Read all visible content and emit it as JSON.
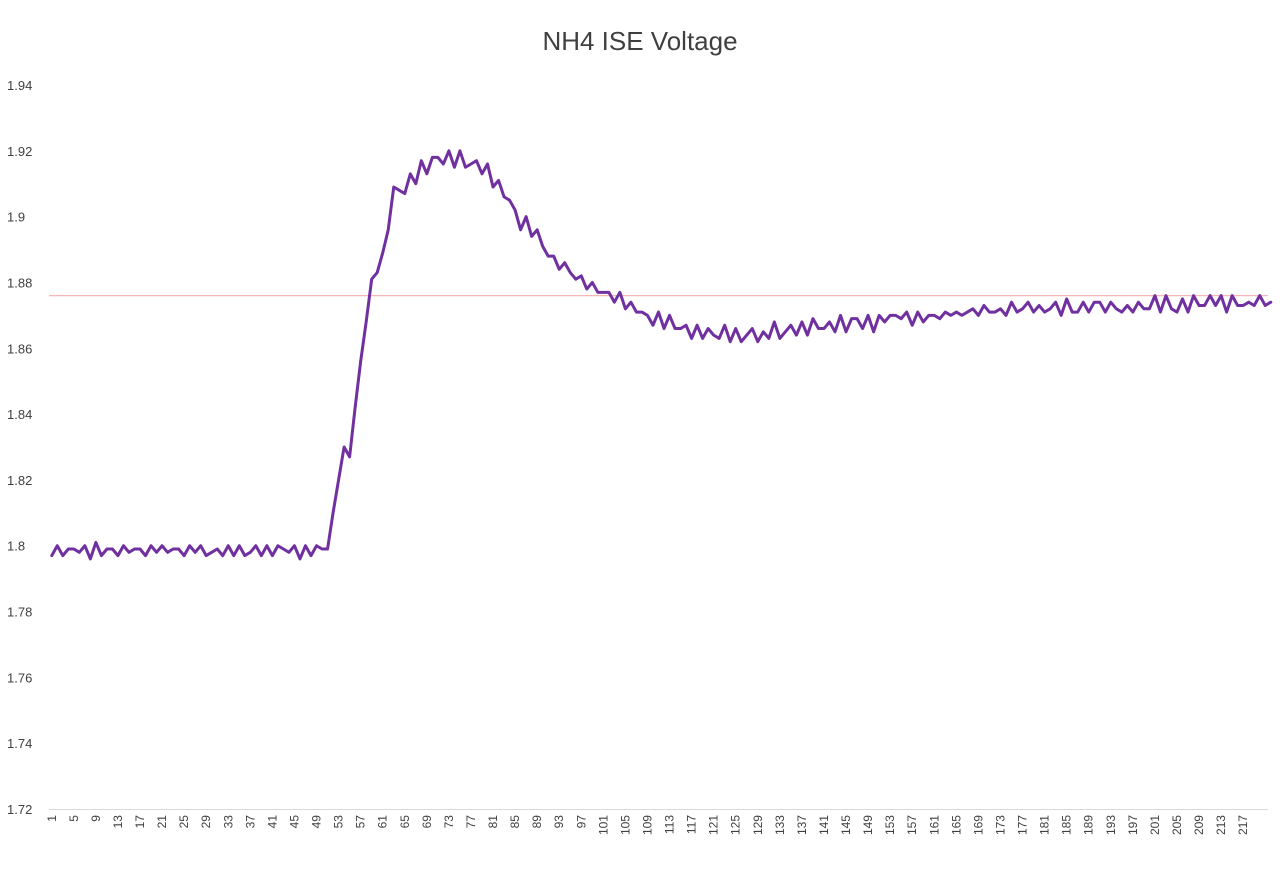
{
  "chart_data": {
    "type": "line",
    "title": "NH4 ISE Voltage",
    "xlabel": "",
    "ylabel": "",
    "ylim": [
      1.72,
      1.94
    ],
    "yticks": [
      1.72,
      1.74,
      1.76,
      1.78,
      1.8,
      1.82,
      1.84,
      1.86,
      1.88,
      1.9,
      1.92,
      1.94
    ],
    "ytick_labels": [
      "1.72",
      "1.74",
      "1.76",
      "1.78",
      "1.8",
      "1.82",
      "1.84",
      "1.86",
      "1.88",
      "1.9",
      "1.92",
      "1.94"
    ],
    "x_start": 1,
    "x_count": 221,
    "xtick_labels": [
      "1",
      "5",
      "9",
      "13",
      "17",
      "21",
      "25",
      "29",
      "33",
      "37",
      "41",
      "45",
      "49",
      "53",
      "57",
      "61",
      "65",
      "69",
      "73",
      "77",
      "81",
      "85",
      "89",
      "93",
      "97",
      "101",
      "105",
      "109",
      "113",
      "117",
      "121",
      "125",
      "129",
      "133",
      "137",
      "141",
      "145",
      "149",
      "153",
      "157",
      "161",
      "165",
      "169",
      "173",
      "177",
      "181",
      "185",
      "189",
      "193",
      "197",
      "201",
      "205",
      "209",
      "213",
      "217"
    ],
    "reference_line": {
      "y": 1.876,
      "color": "#f4b6b6"
    },
    "series": [
      {
        "name": "NH4 ISE Voltage",
        "color": "#7030a0",
        "values": [
          1.797,
          1.8,
          1.797,
          1.799,
          1.799,
          1.798,
          1.8,
          1.796,
          1.801,
          1.797,
          1.799,
          1.799,
          1.797,
          1.8,
          1.798,
          1.799,
          1.799,
          1.797,
          1.8,
          1.798,
          1.8,
          1.798,
          1.799,
          1.799,
          1.797,
          1.8,
          1.798,
          1.8,
          1.797,
          1.798,
          1.799,
          1.797,
          1.8,
          1.797,
          1.8,
          1.797,
          1.798,
          1.8,
          1.797,
          1.8,
          1.797,
          1.8,
          1.799,
          1.798,
          1.8,
          1.796,
          1.8,
          1.797,
          1.8,
          1.799,
          1.799,
          1.81,
          1.82,
          1.83,
          1.827,
          1.842,
          1.856,
          1.868,
          1.881,
          1.883,
          1.889,
          1.896,
          1.909,
          1.908,
          1.907,
          1.913,
          1.91,
          1.917,
          1.913,
          1.918,
          1.918,
          1.916,
          1.92,
          1.915,
          1.92,
          1.915,
          1.916,
          1.917,
          1.913,
          1.916,
          1.909,
          1.911,
          1.906,
          1.905,
          1.902,
          1.896,
          1.9,
          1.894,
          1.896,
          1.891,
          1.888,
          1.888,
          1.884,
          1.886,
          1.883,
          1.881,
          1.882,
          1.878,
          1.88,
          1.877,
          1.877,
          1.877,
          1.874,
          1.877,
          1.872,
          1.874,
          1.871,
          1.871,
          1.87,
          1.867,
          1.871,
          1.866,
          1.87,
          1.866,
          1.866,
          1.867,
          1.863,
          1.867,
          1.863,
          1.866,
          1.864,
          1.863,
          1.867,
          1.862,
          1.866,
          1.862,
          1.864,
          1.866,
          1.862,
          1.865,
          1.863,
          1.868,
          1.863,
          1.865,
          1.867,
          1.864,
          1.868,
          1.864,
          1.869,
          1.866,
          1.866,
          1.868,
          1.865,
          1.87,
          1.865,
          1.869,
          1.869,
          1.866,
          1.87,
          1.865,
          1.87,
          1.868,
          1.87,
          1.87,
          1.869,
          1.871,
          1.867,
          1.871,
          1.868,
          1.87,
          1.87,
          1.869,
          1.871,
          1.87,
          1.871,
          1.87,
          1.871,
          1.872,
          1.87,
          1.873,
          1.871,
          1.871,
          1.872,
          1.87,
          1.874,
          1.871,
          1.872,
          1.874,
          1.871,
          1.873,
          1.871,
          1.872,
          1.874,
          1.87,
          1.875,
          1.871,
          1.871,
          1.874,
          1.871,
          1.874,
          1.874,
          1.871,
          1.874,
          1.872,
          1.871,
          1.873,
          1.871,
          1.874,
          1.872,
          1.872,
          1.876,
          1.871,
          1.876,
          1.872,
          1.871,
          1.875,
          1.871,
          1.876,
          1.873,
          1.873,
          1.876,
          1.873,
          1.876,
          1.871,
          1.876,
          1.873,
          1.873,
          1.874,
          1.873,
          1.876,
          1.873,
          1.874
        ]
      }
    ]
  }
}
